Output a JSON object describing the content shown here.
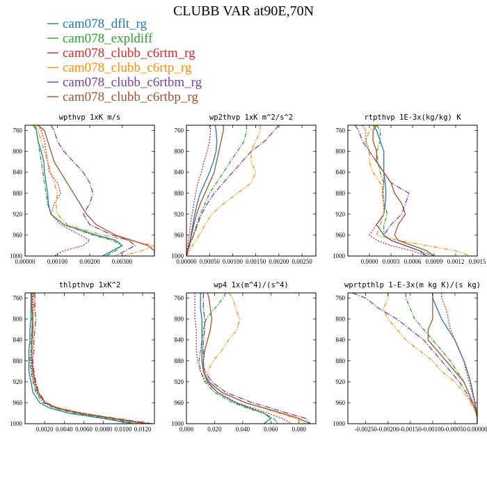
{
  "title": "CLUBB VAR at90E,70N",
  "series": [
    {
      "name": "cam078_dflt_rg",
      "color": "#1f77b4",
      "dash": ""
    },
    {
      "name": "cam078_expldiff",
      "color": "#2ca02c",
      "dash": "6,2,1.5,2"
    },
    {
      "name": "cam078_clubb_c6rtm_rg",
      "color": "#d62728",
      "dash": "2,2"
    },
    {
      "name": "cam078_clubb_c6rtp_rg",
      "color": "#ff8c00",
      "dash": "6,2,1.5,2,1.5,2"
    },
    {
      "name": "cam078_clubb_c6rtbm_rg",
      "color": "#7b3fa0",
      "dash": "8,2,1.5,2"
    },
    {
      "name": "cam078_clubb_c6rtbp_rg",
      "color": "#a0522d",
      "dash": ""
    }
  ],
  "chart_data": [
    {
      "type": "line",
      "title": "wpthvp  1xK m/s",
      "xlim": [
        0,
        0.004
      ],
      "ylim": [
        1000,
        750
      ],
      "xticks": [
        "0.00000",
        "0.00100",
        "0.00200",
        "0.00300"
      ],
      "xtickvals": [
        0,
        0.001,
        0.002,
        0.003
      ],
      "yticks": [
        "760",
        "800",
        "840",
        "880",
        "920",
        "960",
        "1000"
      ],
      "ytickvals": [
        760,
        800,
        840,
        880,
        920,
        960,
        1000
      ],
      "y": [
        750,
        760,
        780,
        800,
        820,
        840,
        860,
        880,
        900,
        920,
        940,
        960,
        970,
        980,
        990,
        1000
      ],
      "series": [
        [
          0.0003,
          0.00035,
          0.0004,
          0.0005,
          0.00058,
          0.0006,
          0.00065,
          0.0007,
          0.00072,
          0.0008,
          0.0012,
          0.0022,
          0.0028,
          0.003,
          0.0027,
          0.0024
        ],
        [
          0.00025,
          0.00035,
          0.0004,
          0.00045,
          0.0005,
          0.00055,
          0.0006,
          0.00065,
          0.0007,
          0.0008,
          0.0012,
          0.0021,
          0.0027,
          0.003,
          0.0028,
          0.0025
        ],
        [
          0.0004,
          0.0005,
          0.0006,
          0.00065,
          0.0007,
          0.00075,
          0.001,
          0.0011,
          0.0009,
          0.0008,
          0.0011,
          0.0017,
          0.002,
          0.0018,
          0.0012,
          0.0009
        ],
        [
          0.0003,
          0.0004,
          0.0005,
          0.0006,
          0.0007,
          0.0008,
          0.0009,
          0.001,
          0.00095,
          0.001,
          0.0013,
          0.0024,
          0.0032,
          0.004,
          0.0036,
          0.003
        ],
        [
          0.0008,
          0.0009,
          0.001,
          0.0012,
          0.0015,
          0.0018,
          0.002,
          0.0021,
          0.002,
          0.0018,
          0.002,
          0.0027,
          0.0032,
          0.0034,
          0.0031,
          0.0028
        ],
        [
          0.0004,
          0.0006,
          0.0007,
          0.0008,
          0.0009,
          0.0011,
          0.0013,
          0.0015,
          0.0017,
          0.0019,
          0.0022,
          0.0028,
          0.0033,
          0.0038,
          0.004,
          0.004
        ]
      ]
    },
    {
      "type": "line",
      "title": "wp2thvp  1xK m^2/s^2",
      "xlim": [
        0,
        0.0028
      ],
      "ylim": [
        1000,
        750
      ],
      "xticks": [
        "0.00000",
        "0.00050",
        "0.00100",
        "0.00150",
        "0.00200",
        "0.00250"
      ],
      "xtickvals": [
        0,
        0.0005,
        0.001,
        0.0015,
        0.002,
        0.0025
      ],
      "yticks": [
        "760",
        "800",
        "840",
        "880",
        "920",
        "960",
        "1000"
      ],
      "ytickvals": [
        760,
        800,
        840,
        880,
        920,
        960,
        1000
      ],
      "y": [
        750,
        760,
        780,
        800,
        820,
        840,
        860,
        880,
        900,
        920,
        940,
        960,
        970,
        980,
        990,
        1000
      ],
      "series": [
        [
          0.00062,
          0.00064,
          0.00066,
          0.00064,
          0.00058,
          0.0005,
          0.0004,
          0.0003,
          0.00023,
          0.00018,
          0.00014,
          0.0001,
          8e-05,
          5e-05,
          3e-05,
          0
        ],
        [
          0.0013,
          0.0013,
          0.00125,
          0.0011,
          0.00095,
          0.0008,
          0.00065,
          0.0005,
          0.0004,
          0.0003,
          0.00022,
          0.00015,
          0.0001,
          6e-05,
          3e-05,
          0
        ],
        [
          0.00052,
          0.00052,
          0.0005,
          0.00045,
          0.00038,
          0.00032,
          0.00025,
          0.0002,
          0.00016,
          0.00012,
          9e-05,
          6e-05,
          4e-05,
          3e-05,
          1e-05,
          0
        ],
        [
          0.0016,
          0.0016,
          0.0015,
          0.0014,
          0.0014,
          0.0015,
          0.0014,
          0.0011,
          0.0008,
          0.00055,
          0.0004,
          0.00028,
          0.0002,
          0.00013,
          7e-05,
          0
        ],
        [
          0.002,
          0.0019,
          0.0017,
          0.0014,
          0.0012,
          0.001,
          0.0008,
          0.0006,
          0.00045,
          0.00033,
          0.00024,
          0.00016,
          0.00011,
          7e-05,
          3e-05,
          0
        ],
        [
          0.0008,
          0.0008,
          0.00075,
          0.0007,
          0.00065,
          0.0006,
          0.0005,
          0.0004,
          0.0003,
          0.00022,
          0.00016,
          0.00011,
          8e-05,
          5e-05,
          2e-05,
          0
        ]
      ]
    },
    {
      "type": "line",
      "title": "rtpthvp  1E-3x(kg/kg) K",
      "xlim": [
        -0.0003,
        0.0015
      ],
      "ylim": [
        1000,
        750
      ],
      "xticks": [
        "0.0000",
        "0.0003",
        "0.0006",
        "0.0009",
        "0.0012",
        "0.0015"
      ],
      "xtickvals": [
        0,
        0.0003,
        0.0006,
        0.0009,
        0.0012,
        0.0015
      ],
      "yticks": [
        "760",
        "800",
        "840",
        "880",
        "920",
        "960",
        "1000"
      ],
      "ytickvals": [
        760,
        800,
        840,
        880,
        920,
        960,
        1000
      ],
      "y": [
        750,
        760,
        780,
        800,
        820,
        840,
        860,
        880,
        900,
        920,
        940,
        960,
        970,
        980,
        990,
        1000
      ],
      "series": [
        [
          5e-05,
          0.0001,
          0.00015,
          0.0002,
          0.0002,
          0.0002,
          0.00022,
          0.00023,
          0.00022,
          0.0002,
          0.0001,
          0.0002,
          0.0003,
          0.0005,
          0.0007,
          0.0008
        ],
        [
          0.0001,
          0.00015,
          0.00015,
          0.0001,
          0.00012,
          0.00015,
          0.0002,
          0.00018,
          0.0002,
          0.00025,
          0.0002,
          0.0002,
          0.0003,
          0.0005,
          0.0007,
          0.0009
        ],
        [
          -0.0001,
          -5e-05,
          -5e-05,
          0.0,
          0.0001,
          0.0002,
          0.0002,
          0.00018,
          0.0002,
          0.0002,
          0.0001,
          0.0,
          0.0001,
          0.0003,
          0.0006,
          0.0008
        ],
        [
          0.0001,
          0.0,
          -5e-05,
          0.0,
          0.0,
          5e-05,
          0.00015,
          0.0002,
          0.0002,
          0.0002,
          0.00015,
          0.0001,
          0.0004,
          0.0008,
          0.0012,
          0.0014
        ],
        [
          -0.0002,
          -0.00015,
          -0.0001,
          0.0,
          0.0001,
          0.0002,
          0.0003,
          0.00055,
          0.0005,
          0.00045,
          0.0003,
          0.0002,
          0.0003,
          0.0005,
          0.0007,
          0.0008
        ],
        [
          0.0001,
          5e-05,
          5e-05,
          0.0001,
          0.0001,
          0.0002,
          0.0003,
          0.00035,
          0.00045,
          0.0005,
          0.0004,
          0.00035,
          0.0004,
          0.0006,
          0.0008,
          0.0009
        ]
      ]
    },
    {
      "type": "line",
      "title": "thlpthvp  1xK^2",
      "xlim": [
        0,
        0.0132
      ],
      "ylim": [
        1000,
        750
      ],
      "xticks": [
        "0.0020",
        "0.0040",
        "0.0060",
        "0.0080",
        "0.0100",
        "0.0120"
      ],
      "xtickvals": [
        0.002,
        0.004,
        0.006,
        0.008,
        0.01,
        0.012
      ],
      "yticks": [
        "760",
        "800",
        "840",
        "880",
        "920",
        "960",
        "1000"
      ],
      "ytickvals": [
        760,
        800,
        840,
        880,
        920,
        960,
        1000
      ],
      "y": [
        750,
        760,
        780,
        800,
        820,
        840,
        860,
        880,
        900,
        920,
        940,
        960,
        970,
        980,
        990,
        1000
      ],
      "series": [
        [
          0.0006,
          0.0006,
          0.0006,
          0.0006,
          0.0005,
          0.0005,
          0.0004,
          0.0004,
          0.0004,
          0.0006,
          0.0008,
          0.0015,
          0.0025,
          0.0045,
          0.008,
          0.011
        ],
        [
          0.0007,
          0.0007,
          0.0007,
          0.0007,
          0.0007,
          0.0006,
          0.0006,
          0.0005,
          0.0006,
          0.0008,
          0.0011,
          0.0018,
          0.003,
          0.005,
          0.0085,
          0.0115
        ],
        [
          0.0008,
          0.0008,
          0.0008,
          0.0008,
          0.0007,
          0.0007,
          0.0007,
          0.0006,
          0.0007,
          0.0009,
          0.0012,
          0.002,
          0.0032,
          0.0055,
          0.009,
          0.012
        ],
        [
          0.0009,
          0.0009,
          0.0009,
          0.0008,
          0.0008,
          0.0008,
          0.0007,
          0.0007,
          0.0008,
          0.001,
          0.0013,
          0.0022,
          0.0035,
          0.006,
          0.0095,
          0.0125
        ],
        [
          0.001,
          0.001,
          0.001,
          0.0011,
          0.001,
          0.0009,
          0.0009,
          0.0008,
          0.0009,
          0.0011,
          0.0014,
          0.0021,
          0.0033,
          0.0058,
          0.0092,
          0.013
        ],
        [
          0.0007,
          0.0007,
          0.0007,
          0.0008,
          0.0008,
          0.0007,
          0.0007,
          0.0007,
          0.0008,
          0.001,
          0.0013,
          0.002,
          0.0032,
          0.0055,
          0.009,
          0.0125
        ]
      ]
    },
    {
      "type": "line",
      "title": "wp4  1x(m^4)/(s^4)",
      "xlim": [
        0,
        0.092
      ],
      "ylim": [
        1000,
        750
      ],
      "xticks": [
        "0.000",
        "0.020",
        "0.040",
        "0.060",
        "0.080"
      ],
      "xtickvals": [
        0,
        0.02,
        0.04,
        0.06,
        0.08
      ],
      "yticks": [
        "760",
        "800",
        "840",
        "880",
        "920",
        "960",
        "1000"
      ],
      "ytickvals": [
        760,
        800,
        840,
        880,
        920,
        960,
        1000
      ],
      "y": [
        750,
        760,
        780,
        800,
        820,
        840,
        860,
        880,
        900,
        920,
        940,
        960,
        970,
        980,
        990,
        1000
      ],
      "series": [
        [
          0.01,
          0.01,
          0.01,
          0.011,
          0.011,
          0.011,
          0.011,
          0.011,
          0.012,
          0.015,
          0.022,
          0.035,
          0.045,
          0.055,
          0.06,
          0.055
        ],
        [
          0.028,
          0.026,
          0.02,
          0.014,
          0.012,
          0.011,
          0.01,
          0.009,
          0.01,
          0.013,
          0.02,
          0.033,
          0.043,
          0.055,
          0.062,
          0.065
        ],
        [
          0.006,
          0.006,
          0.006,
          0.006,
          0.007,
          0.007,
          0.007,
          0.008,
          0.01,
          0.014,
          0.022,
          0.036,
          0.047,
          0.058,
          0.068,
          0.075
        ],
        [
          0.03,
          0.033,
          0.035,
          0.038,
          0.036,
          0.03,
          0.025,
          0.019,
          0.015,
          0.016,
          0.025,
          0.042,
          0.054,
          0.066,
          0.078,
          0.085
        ],
        [
          0.012,
          0.012,
          0.012,
          0.013,
          0.013,
          0.012,
          0.012,
          0.012,
          0.013,
          0.018,
          0.028,
          0.047,
          0.06,
          0.072,
          0.085,
          0.088
        ],
        [
          0.015,
          0.016,
          0.017,
          0.018,
          0.017,
          0.015,
          0.013,
          0.012,
          0.012,
          0.016,
          0.025,
          0.042,
          0.055,
          0.068,
          0.08,
          0.088
        ]
      ]
    },
    {
      "type": "line",
      "title": "wprtpthlp  1-E-3x(m kg K)/(s kg)",
      "xlim": [
        -0.0029,
        0
      ],
      "ylim": [
        1000,
        750
      ],
      "xticks": [
        "-0.00250",
        "-0.00200",
        "-0.00150",
        "-0.00100",
        "-0.00050",
        "0.00000"
      ],
      "xtickvals": [
        -0.0025,
        -0.002,
        -0.0015,
        -0.001,
        -0.0005,
        0
      ],
      "yticks": [
        "760",
        "800",
        "840",
        "880",
        "920",
        "960",
        "1000"
      ],
      "ytickvals": [
        760,
        800,
        840,
        880,
        920,
        960,
        1000
      ],
      "y": [
        750,
        760,
        780,
        800,
        820,
        840,
        860,
        880,
        900,
        920,
        940,
        960,
        970,
        980,
        990,
        1000
      ],
      "series": [
        [
          -0.001,
          -0.001,
          -0.0009,
          -0.0008,
          -0.00065,
          -0.0005,
          -0.0004,
          -0.0003,
          -0.00022,
          -0.00015,
          -0.0001,
          -5e-05,
          -3e-05,
          -1e-05,
          0,
          0
        ],
        [
          -0.0016,
          -0.0016,
          -0.0015,
          -0.0014,
          -0.0012,
          -0.001,
          -0.0008,
          -0.0006,
          -0.00045,
          -0.0003,
          -0.0002,
          -0.0001,
          -5e-05,
          -2e-05,
          0,
          0
        ],
        [
          -0.0008,
          -0.0008,
          -0.0007,
          -0.00065,
          -0.0006,
          -0.0005,
          -0.0004,
          -0.0003,
          -0.00025,
          -0.00018,
          -0.00012,
          -6e-05,
          -3e-05,
          -1e-05,
          0,
          0
        ],
        [
          -0.002,
          -0.002,
          -0.0021,
          -0.002,
          -0.0018,
          -0.0016,
          -0.0013,
          -0.001,
          -0.0008,
          -0.0005,
          -0.0003,
          -0.00015,
          -8e-05,
          -3e-05,
          0,
          0
        ],
        [
          -0.0028,
          -0.0025,
          -0.0022,
          -0.0018,
          -0.0015,
          -0.0012,
          -0.001,
          -0.0008,
          -0.0006,
          -0.0004,
          -0.00025,
          -0.00012,
          -6e-05,
          -2e-05,
          0,
          0
        ],
        [
          -0.001,
          -0.001,
          -0.001,
          -0.001,
          -0.0011,
          -0.0011,
          -0.0009,
          -0.0007,
          -0.0005,
          -0.0003,
          -0.0002,
          -0.0001,
          -5e-05,
          -2e-05,
          0,
          0
        ]
      ]
    }
  ]
}
